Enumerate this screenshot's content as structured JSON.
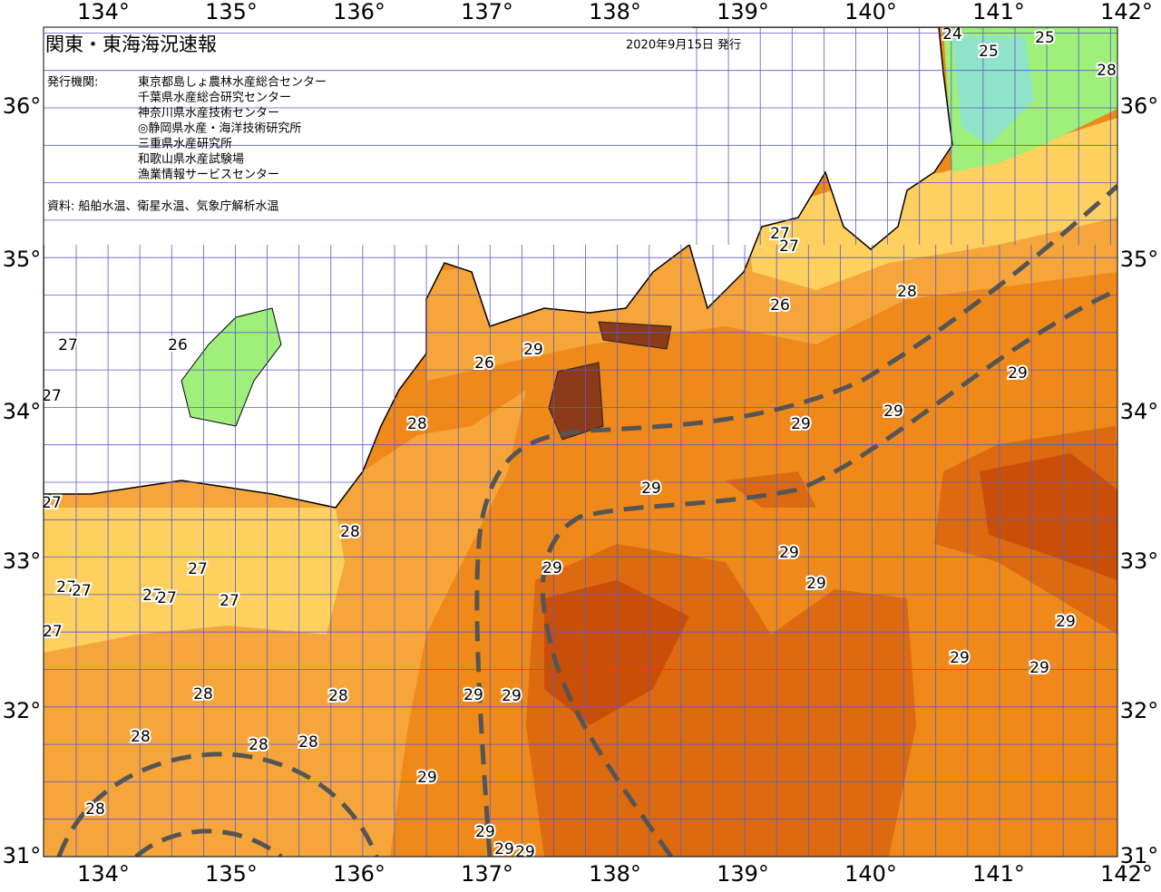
{
  "header": {
    "title": "関東・東海海況速報",
    "date": "2020年9月15日 発行",
    "publisher_label": "発行機関:",
    "institutions": [
      "東京都島しょ農林水産総合センター",
      "千葉県水産総合研究センター",
      "神奈川県水産技術センター",
      "◎静岡県水産・海洋技術研究所",
      "三重県水産研究所",
      "和歌山県水産試験場",
      "漁業情報サービスセンター"
    ],
    "source": "資料: 船舶水温、衛星水温、気象庁解析水温"
  },
  "axes": {
    "longitude": [
      "134°",
      "135°",
      "136°",
      "137°",
      "138°",
      "139°",
      "140°",
      "141°",
      "142°"
    ],
    "latitude": [
      "36°",
      "35°",
      "34°",
      "33°",
      "32°",
      "31°"
    ]
  },
  "contour_labels": [
    "24",
    "25",
    "25",
    "28",
    "27",
    "27",
    "28",
    "26",
    "29",
    "26",
    "26",
    "27",
    "27",
    "28",
    "29",
    "29",
    "29",
    "29",
    "27",
    "28",
    "29",
    "29",
    "29",
    "27",
    "27",
    "27",
    "27",
    "27",
    "27",
    "27",
    "29",
    "29",
    "29",
    "28",
    "28",
    "29",
    "29",
    "28",
    "28",
    "28",
    "29",
    "28",
    "29",
    "29",
    "29"
  ]
}
